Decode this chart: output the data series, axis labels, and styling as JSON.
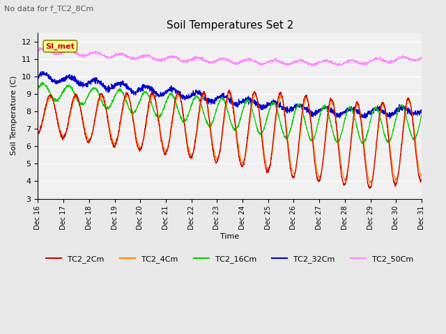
{
  "title": "Soil Temperatures Set 2",
  "subtitle": "No data for f_TC2_8Cm",
  "xlabel": "Time",
  "ylabel": "Soil Temperature (C)",
  "ylim": [
    3.0,
    12.5
  ],
  "yticks": [
    3.0,
    4.0,
    5.0,
    6.0,
    7.0,
    8.0,
    9.0,
    10.0,
    11.0,
    12.0
  ],
  "x_tick_labels": [
    "Dec 16",
    "Dec 17",
    "Dec 18",
    "Dec 19",
    "Dec 20",
    "Dec 21",
    "Dec 22",
    "Dec 23",
    "Dec 24",
    "Dec 25",
    "Dec 26",
    "Dec 27",
    "Dec 28",
    "Dec 29",
    "Dec 30",
    "Dec 31"
  ],
  "colors": {
    "TC2_2Cm": "#cc0000",
    "TC2_4Cm": "#ff8800",
    "TC2_16Cm": "#00cc00",
    "TC2_32Cm": "#0000cc",
    "TC2_50Cm": "#ff88ff"
  },
  "SI_met_color": "#cc0000",
  "SI_met_box_face": "#ffff99",
  "SI_met_box_edge": "#888800",
  "background_color": "#e8e8e8",
  "plot_bg_color": "#f0f0f0",
  "grid_color": "#ffffff",
  "n_points": 2000
}
